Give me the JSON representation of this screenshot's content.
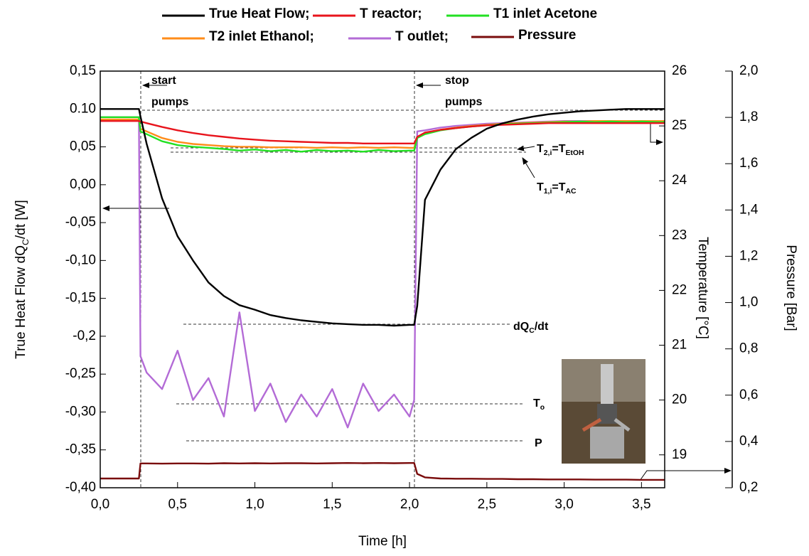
{
  "chart_data": {
    "type": "line",
    "xlabel": "Time [h]",
    "ylabel": [
      {
        "text": "True Heat Flow dQ"
      },
      {
        "text": "C",
        "sub": true
      },
      {
        "text": "/dt [W]"
      }
    ],
    "y2label": "Temperature [°C]",
    "y3label": "Pressure [Bar]",
    "xlim": [
      0,
      3.65
    ],
    "ylim": [
      -0.4,
      0.15
    ],
    "y2lim": [
      18.4,
      26
    ],
    "y3lim": [
      0.2,
      2.0
    ],
    "xticks": [
      {
        "value": 0,
        "label": "0,0"
      },
      {
        "value": 0.5,
        "label": "0,5"
      },
      {
        "value": 1.0,
        "label": "1,0"
      },
      {
        "value": 1.5,
        "label": "1,5"
      },
      {
        "value": 2.0,
        "label": "2,0"
      },
      {
        "value": 2.5,
        "label": "2,5"
      },
      {
        "value": 3.0,
        "label": "3,0"
      },
      {
        "value": 3.5,
        "label": "3,5"
      }
    ],
    "yticks": [
      {
        "value": 0.15,
        "label": "0,15"
      },
      {
        "value": 0.1,
        "label": "0.10"
      },
      {
        "value": 0.05,
        "label": "0,05"
      },
      {
        "value": 0.0,
        "label": "0,00"
      },
      {
        "value": -0.05,
        "label": "-0,05"
      },
      {
        "value": -0.1,
        "label": "-0,10"
      },
      {
        "value": -0.15,
        "label": "-0,15"
      },
      {
        "value": -0.2,
        "label": "-0,2"
      },
      {
        "value": -0.25,
        "label": "-0,25"
      },
      {
        "value": -0.3,
        "label": "-0,30"
      },
      {
        "value": -0.35,
        "label": "-0,35"
      },
      {
        "value": -0.4,
        "label": "-0,40"
      }
    ],
    "y2ticks": [
      19,
      20,
      21,
      22,
      23,
      24,
      25,
      26
    ],
    "y3ticks": [
      {
        "value": 0.2,
        "label": "0,2"
      },
      {
        "value": 0.4,
        "label": "0,4"
      },
      {
        "value": 0.6,
        "label": "0,6"
      },
      {
        "value": 0.8,
        "label": "0,8"
      },
      {
        "value": 1.0,
        "label": "1,0"
      },
      {
        "value": 1.2,
        "label": "1,2"
      },
      {
        "value": 1.4,
        "label": "1,4"
      },
      {
        "value": 1.6,
        "label": "1,6"
      },
      {
        "value": 1.8,
        "label": "1,8"
      },
      {
        "value": 2.0,
        "label": "2,0"
      }
    ],
    "x": [
      0,
      0.1,
      0.2,
      0.25,
      0.26,
      0.3,
      0.4,
      0.5,
      0.6,
      0.7,
      0.8,
      0.9,
      1.0,
      1.1,
      1.2,
      1.3,
      1.4,
      1.5,
      1.6,
      1.7,
      1.8,
      1.9,
      2.0,
      2.03,
      2.05,
      2.1,
      2.2,
      2.3,
      2.4,
      2.5,
      2.6,
      2.7,
      2.8,
      2.9,
      3.0,
      3.1,
      3.2,
      3.3,
      3.4,
      3.5,
      3.6,
      3.65
    ],
    "series": [
      {
        "name": "Pressure",
        "color": "#7a0c0c",
        "axis": "y3",
        "values": [
          0.24,
          0.24,
          0.24,
          0.24,
          0.305,
          0.305,
          0.304,
          0.305,
          0.305,
          0.304,
          0.306,
          0.305,
          0.306,
          0.305,
          0.306,
          0.306,
          0.305,
          0.306,
          0.307,
          0.306,
          0.307,
          0.306,
          0.307,
          0.307,
          0.26,
          0.245,
          0.24,
          0.239,
          0.239,
          0.238,
          0.238,
          0.237,
          0.237,
          0.236,
          0.236,
          0.236,
          0.235,
          0.235,
          0.235,
          0.234,
          0.234,
          0.234
        ]
      },
      {
        "name": "T outlet;",
        "color": "#b36bd6",
        "axis": "y2",
        "values": [
          25.16,
          25.16,
          25.16,
          25.16,
          20.8,
          20.5,
          20.2,
          20.9,
          20.0,
          20.4,
          19.7,
          21.6,
          19.8,
          20.3,
          19.6,
          20.1,
          19.7,
          20.2,
          19.5,
          20.3,
          19.8,
          20.1,
          19.7,
          20.0,
          24.9,
          24.92,
          24.97,
          25.0,
          25.02,
          25.04,
          25.05,
          25.06,
          25.07,
          25.08,
          25.09,
          25.09,
          25.09,
          25.09,
          25.09,
          25.09,
          25.09,
          25.09
        ]
      },
      {
        "name": "T2 inlet Ethanol;",
        "color": "#ff8c1a",
        "axis": "y2",
        "values": [
          25.12,
          25.12,
          25.12,
          25.12,
          24.95,
          24.9,
          24.78,
          24.71,
          24.67,
          24.65,
          24.63,
          24.62,
          24.62,
          24.61,
          24.61,
          24.61,
          24.6,
          24.61,
          24.6,
          24.61,
          24.6,
          24.61,
          24.6,
          24.6,
          24.8,
          24.87,
          24.93,
          24.97,
          25.0,
          25.02,
          25.04,
          25.05,
          25.06,
          25.07,
          25.08,
          25.08,
          25.09,
          25.09,
          25.09,
          25.09,
          25.09,
          25.09
        ]
      },
      {
        "name": "T1 inlet Acetone",
        "color": "#22e022",
        "axis": "y2",
        "values": [
          25.16,
          25.16,
          25.16,
          25.16,
          24.9,
          24.85,
          24.72,
          24.65,
          24.62,
          24.6,
          24.58,
          24.55,
          24.57,
          24.54,
          24.56,
          24.53,
          24.56,
          24.54,
          24.55,
          24.53,
          24.56,
          24.54,
          24.55,
          24.55,
          24.78,
          24.85,
          24.92,
          24.96,
          24.99,
          25.01,
          25.03,
          25.04,
          25.05,
          25.06,
          25.07,
          25.08,
          25.07,
          25.08,
          25.07,
          25.08,
          25.07,
          25.07
        ]
      },
      {
        "name": "T reactor;",
        "color": "#e8141c",
        "axis": "y2",
        "values": [
          25.09,
          25.09,
          25.09,
          25.09,
          25.08,
          25.05,
          24.98,
          24.92,
          24.87,
          24.83,
          24.8,
          24.77,
          24.75,
          24.73,
          24.72,
          24.71,
          24.7,
          24.69,
          24.69,
          24.68,
          24.68,
          24.68,
          24.68,
          24.68,
          24.8,
          24.88,
          24.93,
          24.96,
          24.99,
          25.01,
          25.02,
          25.03,
          25.04,
          25.05,
          25.05,
          25.05,
          25.05,
          25.05,
          25.05,
          25.05,
          25.05,
          25.05
        ]
      },
      {
        "name": "True Heat Flow;",
        "color": "#000000",
        "values": [
          0.1,
          0.1,
          0.1,
          0.1,
          0.09,
          0.054,
          -0.018,
          -0.068,
          -0.1,
          -0.129,
          -0.147,
          -0.159,
          -0.165,
          -0.172,
          -0.176,
          -0.179,
          -0.181,
          -0.183,
          -0.184,
          -0.185,
          -0.185,
          -0.186,
          -0.185,
          -0.185,
          -0.16,
          -0.02,
          0.02,
          0.047,
          0.062,
          0.074,
          0.081,
          0.086,
          0.09,
          0.093,
          0.095,
          0.097,
          0.098,
          0.099,
          0.1,
          0.1,
          0.1,
          0.1
        ]
      }
    ],
    "annotations": [
      [
        {
          "text": "start"
        }
      ],
      [
        {
          "text": "pumps"
        }
      ],
      [
        {
          "text": "stop"
        }
      ],
      [
        {
          "text": "pumps"
        }
      ],
      [
        {
          "text": "T"
        },
        {
          "text": "2,i",
          "sub": true
        },
        {
          "text": "=T"
        },
        {
          "text": "EtOH",
          "sub": true
        }
      ],
      [
        {
          "text": "T"
        },
        {
          "text": "1,i",
          "sub": true
        },
        {
          "text": "=T"
        },
        {
          "text": "AC",
          "sub": true
        }
      ],
      [
        {
          "text": "dQ"
        },
        {
          "text": "C",
          "sub": true
        },
        {
          "text": "/dt"
        }
      ],
      [
        {
          "text": "T"
        },
        {
          "text": "o",
          "sub": true
        }
      ],
      [
        {
          "text": "P"
        }
      ]
    ]
  }
}
